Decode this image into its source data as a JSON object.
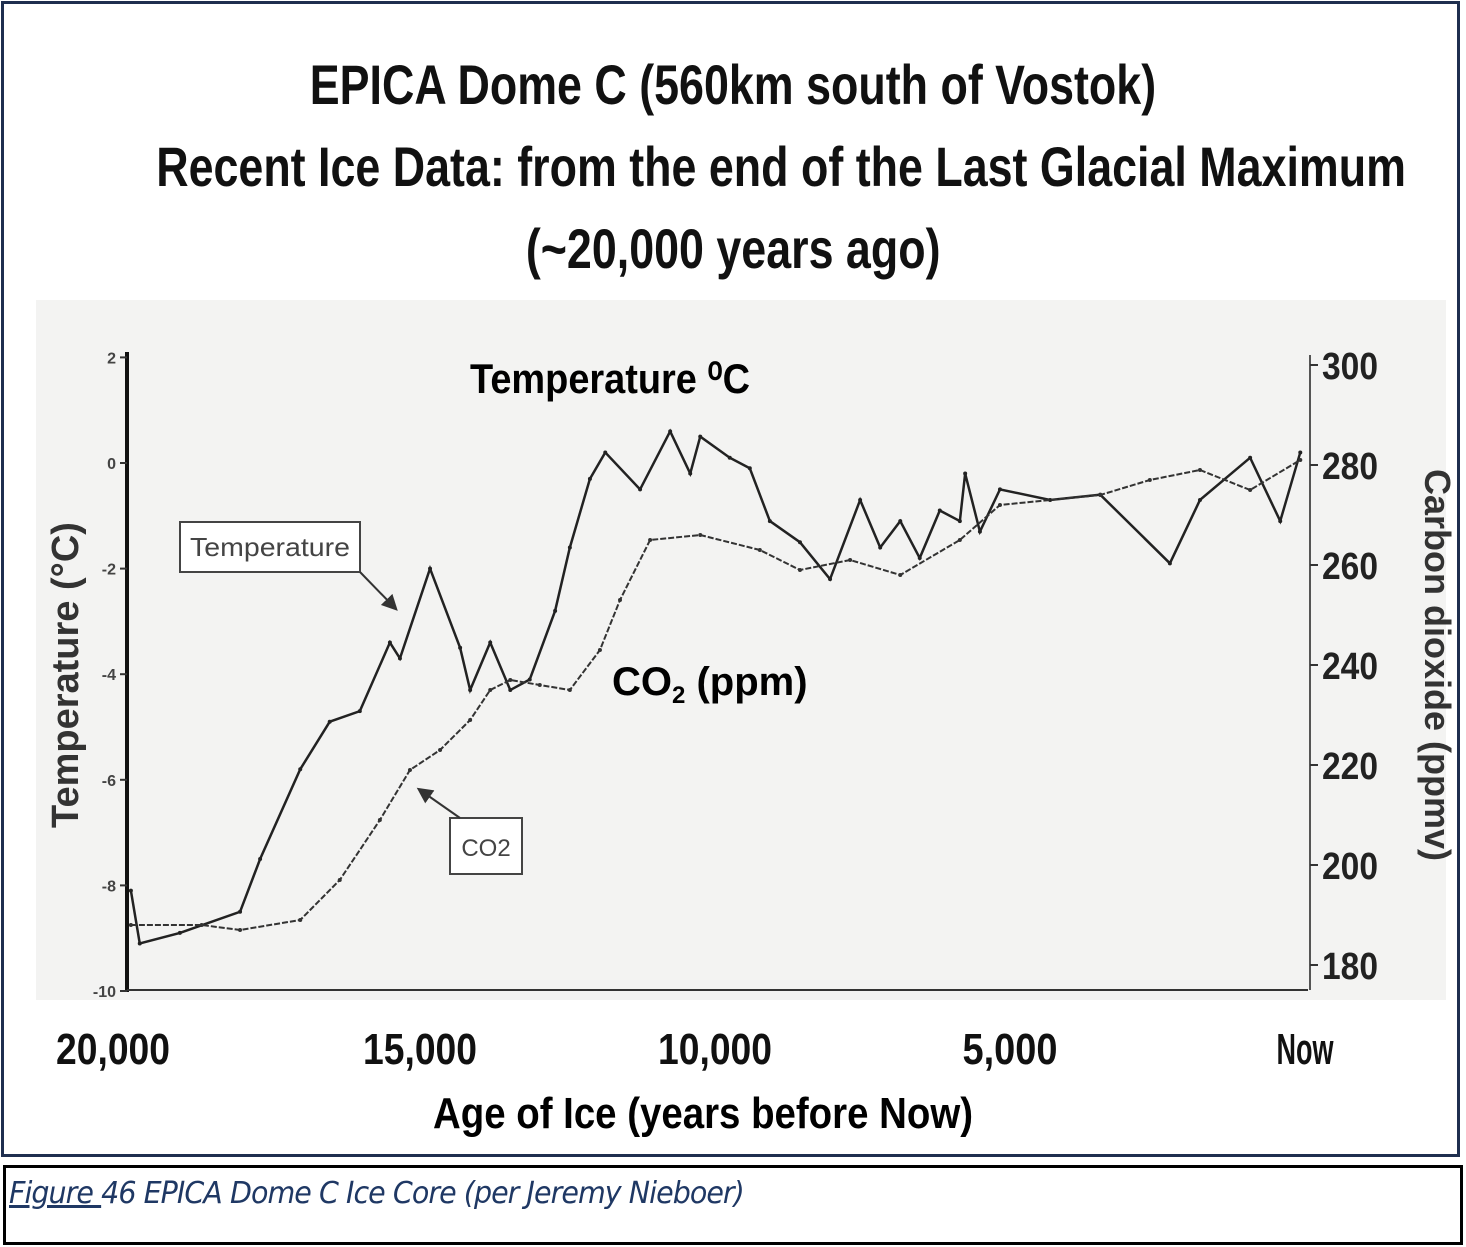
{
  "title": {
    "line1": "EPICA Dome C (560km south of Vostok)",
    "line2": "Recent Ice Data: from the end of the Last Glacial Maximum",
    "line3": "(~20,000 years ago)"
  },
  "caption": {
    "prefix": "Figure ",
    "text": "46 EPICA Dome C Ice Core (per Jeremy Nieboer)",
    "color": "#1f3864"
  },
  "chart_data": {
    "type": "line",
    "title": "Temperature ⁰C",
    "xlabel": "Age of Ice (years before Now)",
    "ylabel_left": "Temperature (°C)",
    "ylabel_right": "Carbon dioxide (ppmv)",
    "x_reversed": true,
    "xlim": [
      20000,
      0
    ],
    "ylim_left": [
      -10,
      2
    ],
    "ylim_right": [
      180,
      300
    ],
    "x_ticks": [
      {
        "value": 20000,
        "label": "20,000"
      },
      {
        "value": 15000,
        "label": "15,000"
      },
      {
        "value": 10000,
        "label": "10,000"
      },
      {
        "value": 5000,
        "label": "5,000"
      },
      {
        "value": 0,
        "label": "Now"
      }
    ],
    "y_left_ticks": [
      "2",
      "0",
      "-2",
      "-4",
      "-6",
      "-8",
      "-10"
    ],
    "y_right_ticks": [
      "300",
      "280",
      "260",
      "240",
      "220",
      "200",
      "180"
    ],
    "grid": false,
    "annotations": {
      "temp_box": "Temperature",
      "co2_box": "CO2",
      "co2_label": "CO",
      "co2_sub": "2",
      "co2_unit": " (ppm)"
    },
    "series": [
      {
        "name": "Temperature",
        "axis": "left",
        "color": "#222222",
        "x": [
          19900,
          19750,
          19070,
          18050,
          17710,
          17030,
          16530,
          16020,
          15510,
          15340,
          14830,
          14320,
          14150,
          13810,
          13470,
          13140,
          12710,
          12460,
          12120,
          11860,
          11270,
          10760,
          10420,
          10250,
          9750,
          9410,
          9070,
          8560,
          8050,
          7540,
          7200,
          6860,
          6530,
          6190,
          5850,
          5760,
          5510,
          5170,
          4320,
          3470,
          2290,
          1780,
          930,
          420,
          80
        ],
        "y": [
          -8.1,
          -9.1,
          -8.9,
          -8.5,
          -7.5,
          -5.8,
          -4.9,
          -4.7,
          -3.4,
          -3.7,
          -2.0,
          -3.5,
          -4.3,
          -3.4,
          -4.3,
          -4.1,
          -2.8,
          -1.6,
          -0.3,
          0.2,
          -0.5,
          0.6,
          -0.2,
          0.5,
          0.1,
          -0.1,
          -1.1,
          -1.5,
          -2.2,
          -0.7,
          -1.6,
          -1.1,
          -1.8,
          -0.9,
          -1.1,
          -0.2,
          -1.3,
          -0.5,
          -0.7,
          -0.6,
          -1.9,
          -0.7,
          0.1,
          -1.1,
          0.2
        ]
      },
      {
        "name": "CO2",
        "axis": "right",
        "color": "#333333",
        "x": [
          19900,
          18700,
          18050,
          17030,
          16360,
          15680,
          15170,
          14660,
          14150,
          13810,
          13470,
          12970,
          12460,
          11950,
          11610,
          11100,
          10250,
          9240,
          8560,
          7710,
          6860,
          5850,
          5170,
          3470,
          2630,
          1780,
          930,
          80
        ],
        "y": [
          188,
          188,
          187,
          189,
          197,
          209,
          219,
          223,
          229,
          235,
          237,
          236,
          235,
          243,
          253,
          265,
          266,
          263,
          259,
          261,
          258,
          265,
          272,
          274,
          277,
          279,
          275,
          281
        ]
      }
    ]
  }
}
